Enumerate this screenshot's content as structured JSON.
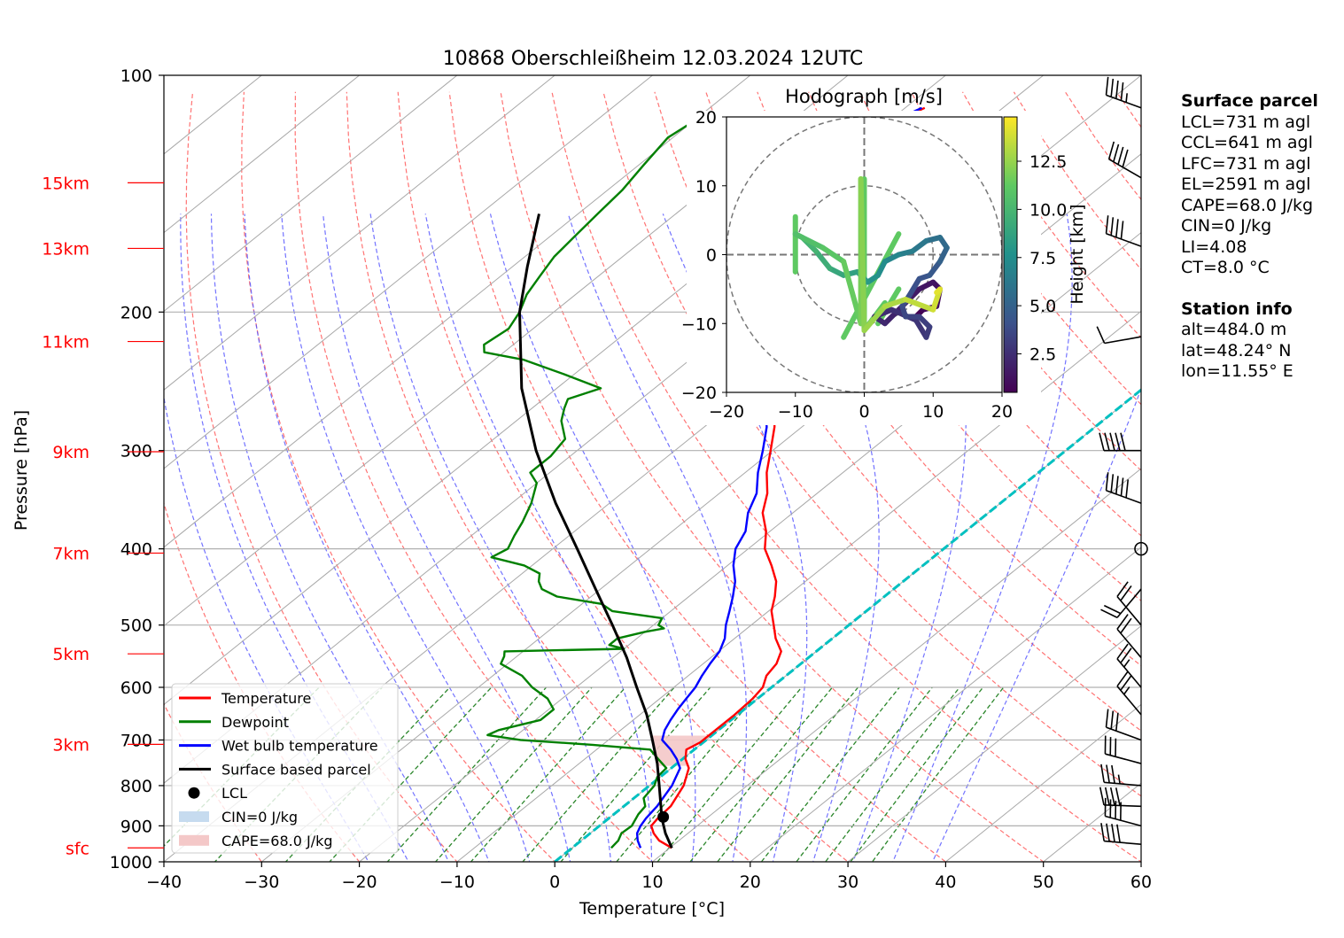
{
  "title": "10868 Oberschleißheim 12.03.2024 12UTC",
  "chart_data": {
    "type": "line",
    "title": "10868 Oberschleißheim 12.03.2024 12UTC",
    "xlabel": "Temperature [°C]",
    "ylabel": "Pressure [hPa]",
    "xlim": [
      -40,
      60
    ],
    "ylim": [
      1000,
      100
    ],
    "y_scale": "log",
    "skew": "skew-T",
    "grid": true,
    "x_ticks": [
      "−40",
      "−30",
      "−20",
      "−10",
      "0",
      "10",
      "20",
      "30",
      "40",
      "50",
      "60"
    ],
    "y_ticks": [
      "100",
      "200",
      "300",
      "400",
      "500",
      "600",
      "700",
      "800",
      "900",
      "1000"
    ],
    "height_ticks": [
      {
        "label": "15km",
        "p": 137
      },
      {
        "label": "13km",
        "p": 166
      },
      {
        "label": "11km",
        "p": 218
      },
      {
        "label": "9km",
        "p": 301
      },
      {
        "label": "7km",
        "p": 405
      },
      {
        "label": "5km",
        "p": 544
      },
      {
        "label": "3km",
        "p": 709
      },
      {
        "label": "sfc",
        "p": 960
      }
    ],
    "legend_position": "lower-left",
    "legend": [
      "Temperature",
      "Dewpoint",
      "Wet bulb temperature",
      "Surface based parcel",
      "LCL",
      "CIN=0 J/kg",
      "CAPE=68.0 J/kg"
    ],
    "series": [
      {
        "name": "Temperature",
        "color": "#ff0000",
        "points": [
          [
            960,
            10.2
          ],
          [
            940,
            8.0
          ],
          [
            920,
            6.5
          ],
          [
            900,
            5.3
          ],
          [
            880,
            5.0
          ],
          [
            850,
            4.8
          ],
          [
            800,
            3.5
          ],
          [
            760,
            1.8
          ],
          [
            740,
            0.3
          ],
          [
            720,
            -0.8
          ],
          [
            705,
            -0.3
          ],
          [
            680,
            -0.3
          ],
          [
            650,
            -0.3
          ],
          [
            620,
            -0.5
          ],
          [
            600,
            -0.9
          ],
          [
            580,
            -2.0
          ],
          [
            560,
            -2.5
          ],
          [
            540,
            -3.6
          ],
          [
            520,
            -5.8
          ],
          [
            500,
            -7.7
          ],
          [
            480,
            -9.7
          ],
          [
            460,
            -11.2
          ],
          [
            440,
            -13.0
          ],
          [
            420,
            -15.5
          ],
          [
            400,
            -18.3
          ],
          [
            380,
            -20.4
          ],
          [
            360,
            -23.1
          ],
          [
            340,
            -25.1
          ],
          [
            320,
            -27.8
          ],
          [
            300,
            -30.2
          ],
          [
            280,
            -32.8
          ],
          [
            260,
            -36.0
          ],
          [
            250,
            -38.5
          ],
          [
            240,
            -41.5
          ],
          [
            230,
            -43.0
          ],
          [
            220,
            -45.0
          ],
          [
            210,
            -46.8
          ],
          [
            200,
            -49.0
          ],
          [
            190,
            -51.0
          ],
          [
            180,
            -52.0
          ],
          [
            170,
            -53.8
          ],
          [
            160,
            -55.3
          ],
          [
            150,
            -57.0
          ],
          [
            140,
            -57.4
          ],
          [
            135,
            -57.6
          ],
          [
            130,
            -58.3
          ],
          [
            125,
            -59.2
          ],
          [
            120,
            -60.0
          ],
          [
            115,
            -59.5
          ],
          [
            110,
            -58.0
          ]
        ]
      },
      {
        "name": "Dewpoint",
        "color": "#008000",
        "points": [
          [
            960,
            4.0
          ],
          [
            940,
            3.8
          ],
          [
            920,
            3.2
          ],
          [
            900,
            3.3
          ],
          [
            870,
            2.5
          ],
          [
            850,
            2.2
          ],
          [
            830,
            1.0
          ],
          [
            800,
            0.5
          ],
          [
            780,
            -0.3
          ],
          [
            760,
            -0.5
          ],
          [
            740,
            -2.5
          ],
          [
            720,
            -4.5
          ],
          [
            710,
            -11.0
          ],
          [
            700,
            -19.0
          ],
          [
            690,
            -23.0
          ],
          [
            680,
            -22.5
          ],
          [
            660,
            -19.5
          ],
          [
            640,
            -19.5
          ],
          [
            620,
            -21.5
          ],
          [
            600,
            -24.5
          ],
          [
            580,
            -27.0
          ],
          [
            560,
            -30.7
          ],
          [
            548,
            -31.3
          ],
          [
            540,
            -31.9
          ],
          [
            536,
            -20.0
          ],
          [
            530,
            -22.0
          ],
          [
            520,
            -22.0
          ],
          [
            510,
            -20.0
          ],
          [
            505,
            -18.5
          ],
          [
            500,
            -19.5
          ],
          [
            490,
            -20.0
          ],
          [
            480,
            -26.0
          ],
          [
            470,
            -28.0
          ],
          [
            460,
            -33.5
          ],
          [
            450,
            -36.0
          ],
          [
            440,
            -37.3
          ],
          [
            430,
            -38.2
          ],
          [
            420,
            -40.8
          ],
          [
            410,
            -45.2
          ],
          [
            400,
            -44.6
          ],
          [
            385,
            -45.6
          ],
          [
            370,
            -46.5
          ],
          [
            350,
            -48.0
          ],
          [
            330,
            -50.0
          ],
          [
            320,
            -52.0
          ],
          [
            305,
            -52.0
          ],
          [
            290,
            -52.7
          ],
          [
            275,
            -55.4
          ],
          [
            265,
            -56.7
          ],
          [
            258,
            -57.5
          ],
          [
            250,
            -55.5
          ],
          [
            240,
            -61.0
          ],
          [
            230,
            -67.0
          ],
          [
            225,
            -72.0
          ],
          [
            220,
            -73.0
          ],
          [
            210,
            -72.5
          ],
          [
            200,
            -73.5
          ],
          [
            190,
            -75.0
          ],
          [
            180,
            -76.0
          ],
          [
            170,
            -77.0
          ],
          [
            160,
            -77.5
          ],
          [
            150,
            -78.0
          ],
          [
            140,
            -78.5
          ],
          [
            130,
            -79.5
          ],
          [
            120,
            -80.5
          ],
          [
            115,
            -80.0
          ]
        ]
      },
      {
        "name": "Wet bulb temperature",
        "color": "#0000ff",
        "points": [
          [
            960,
            7.0
          ],
          [
            940,
            5.8
          ],
          [
            920,
            4.8
          ],
          [
            900,
            4.2
          ],
          [
            880,
            3.8
          ],
          [
            850,
            3.4
          ],
          [
            800,
            2.3
          ],
          [
            760,
            0.9
          ],
          [
            740,
            -0.6
          ],
          [
            720,
            -2.4
          ],
          [
            700,
            -4.5
          ],
          [
            680,
            -5.5
          ],
          [
            660,
            -6.2
          ],
          [
            640,
            -6.8
          ],
          [
            620,
            -7.3
          ],
          [
            600,
            -7.8
          ],
          [
            580,
            -8.6
          ],
          [
            560,
            -9.3
          ],
          [
            540,
            -9.9
          ],
          [
            520,
            -11.0
          ],
          [
            500,
            -12.6
          ],
          [
            480,
            -14.0
          ],
          [
            460,
            -15.5
          ],
          [
            440,
            -17.2
          ],
          [
            420,
            -19.4
          ],
          [
            400,
            -21.3
          ],
          [
            380,
            -22.5
          ],
          [
            360,
            -24.6
          ],
          [
            340,
            -26.2
          ],
          [
            320,
            -28.7
          ],
          [
            300,
            -31.0
          ],
          [
            280,
            -33.6
          ],
          [
            260,
            -37.0
          ],
          [
            250,
            -39.0
          ],
          [
            240,
            -42.0
          ],
          [
            230,
            -44.0
          ],
          [
            220,
            -45.4
          ],
          [
            210,
            -47.2
          ],
          [
            200,
            -49.2
          ],
          [
            190,
            -51.1
          ],
          [
            180,
            -52.2
          ],
          [
            170,
            -54.0
          ],
          [
            160,
            -55.5
          ],
          [
            150,
            -57.2
          ],
          [
            140,
            -57.7
          ],
          [
            130,
            -58.6
          ],
          [
            120,
            -60.3
          ],
          [
            115,
            -59.8
          ],
          [
            110,
            -58.3
          ]
        ]
      },
      {
        "name": "Surface based parcel",
        "color": "#000000",
        "points": [
          [
            960,
            10.2
          ],
          [
            920,
            7.7
          ],
          [
            880,
            5.4
          ],
          [
            850,
            3.8
          ],
          [
            800,
            1.0
          ],
          [
            750,
            -2.0
          ],
          [
            700,
            -5.5
          ],
          [
            650,
            -9.3
          ],
          [
            600,
            -13.8
          ],
          [
            550,
            -18.6
          ],
          [
            500,
            -24.2
          ],
          [
            450,
            -30.5
          ],
          [
            400,
            -37.5
          ],
          [
            350,
            -45.5
          ],
          [
            300,
            -54.2
          ],
          [
            250,
            -63.6
          ],
          [
            200,
            -73.5
          ],
          [
            175,
            -78.5
          ],
          [
            150,
            -84.0
          ]
        ]
      }
    ],
    "lcl": {
      "label": "LCL",
      "p": 877,
      "t": 5.4
    },
    "cape_region": {
      "label": "CAPE=68.0 J/kg",
      "p_range": [
        755,
        690
      ]
    },
    "cin_region": {
      "label": "CIN=0 J/kg"
    },
    "freezing_line": {
      "color": "#00c0c0",
      "style": "dashed",
      "t": 0
    },
    "wind_barbs": {
      "position": "right",
      "items": [
        {
          "p": 110,
          "speed_kt": 45,
          "dir_deg": 290
        },
        {
          "p": 135,
          "speed_kt": 40,
          "dir_deg": 300
        },
        {
          "p": 165,
          "speed_kt": 40,
          "dir_deg": 290
        },
        {
          "p": 215,
          "speed_kt": 10,
          "dir_deg": 260
        },
        {
          "p": 300,
          "speed_kt": 50,
          "dir_deg": 270
        },
        {
          "p": 350,
          "speed_kt": 50,
          "dir_deg": 290
        },
        {
          "p": 400,
          "speed_kt": 0,
          "dir_deg": 0
        },
        {
          "p": 450,
          "speed_kt": 20,
          "dir_deg": 220
        },
        {
          "p": 500,
          "speed_kt": 20,
          "dir_deg": 320
        },
        {
          "p": 550,
          "speed_kt": 20,
          "dir_deg": 320
        },
        {
          "p": 600,
          "speed_kt": 25,
          "dir_deg": 320
        },
        {
          "p": 650,
          "speed_kt": 25,
          "dir_deg": 320
        },
        {
          "p": 700,
          "speed_kt": 30,
          "dir_deg": 290
        },
        {
          "p": 750,
          "speed_kt": 30,
          "dir_deg": 285
        },
        {
          "p": 800,
          "speed_kt": 35,
          "dir_deg": 275
        },
        {
          "p": 850,
          "speed_kt": 40,
          "dir_deg": 272
        },
        {
          "p": 900,
          "speed_kt": 40,
          "dir_deg": 285
        },
        {
          "p": 950,
          "speed_kt": 40,
          "dir_deg": 275
        }
      ]
    },
    "hodograph": {
      "title": "Hodograph [m/s]",
      "xlim": [
        -20,
        20
      ],
      "ylim": [
        -20,
        20
      ],
      "ticks": [
        "−20",
        "−10",
        "0",
        "10",
        "20"
      ],
      "colorbar_label": "Height [km]",
      "colorbar_ticks": [
        "2.5",
        "5.0",
        "7.5",
        "10.0",
        "12.5"
      ],
      "colorbar_range": [
        0.5,
        14.8
      ],
      "points": [
        [
          7.5,
          -9.0,
          0.5
        ],
        [
          8.5,
          -8.0,
          0.8
        ],
        [
          10.5,
          -7.5,
          1.0
        ],
        [
          11.0,
          -5.0,
          1.2
        ],
        [
          10.0,
          -4.0,
          1.4
        ],
        [
          8.0,
          -5.0,
          1.6
        ],
        [
          6.0,
          -7.0,
          1.8
        ],
        [
          4.5,
          -8.5,
          2.0
        ],
        [
          3.0,
          -10.0,
          2.2
        ],
        [
          1.5,
          -9.0,
          2.4
        ],
        [
          4.0,
          -8.0,
          2.6
        ],
        [
          7.5,
          -9.5,
          2.8
        ],
        [
          9.0,
          -12.0,
          3.0
        ],
        [
          9.5,
          -10.5,
          3.2
        ],
        [
          8.0,
          -9.0,
          3.4
        ],
        [
          6.0,
          -9.0,
          3.6
        ],
        [
          5.5,
          -7.5,
          3.8
        ],
        [
          6.5,
          -6.0,
          4.0
        ],
        [
          8.0,
          -3.5,
          4.2
        ],
        [
          9.5,
          -3.0,
          4.5
        ],
        [
          11.0,
          -1.0,
          5.0
        ],
        [
          12.0,
          1.0,
          5.4
        ],
        [
          11.0,
          2.5,
          5.8
        ],
        [
          9.0,
          2.0,
          6.2
        ],
        [
          7.0,
          0.5,
          6.6
        ],
        [
          5.0,
          0.0,
          7.0
        ],
        [
          3.0,
          -1.0,
          7.4
        ],
        [
          2.0,
          -3.0,
          7.8
        ],
        [
          0.5,
          -4.0,
          8.2
        ],
        [
          -1.0,
          -2.5,
          8.6
        ],
        [
          -3.0,
          -3.0,
          9.0
        ],
        [
          -5.0,
          -2.0,
          9.4
        ],
        [
          -7.0,
          0.5,
          9.8
        ],
        [
          -9.0,
          2.5,
          10.2
        ],
        [
          -10.0,
          3.0,
          10.6
        ],
        [
          -6.0,
          1.0,
          11.0
        ],
        [
          -3.0,
          -1.0,
          11.4
        ],
        [
          -0.5,
          -10.0,
          11.8
        ],
        [
          -0.5,
          11.0,
          12.2
        ],
        [
          0.0,
          -11.0,
          12.6
        ],
        [
          3.0,
          -7.5,
          13.0
        ],
        [
          6.0,
          -6.5,
          13.4
        ],
        [
          10.0,
          -8.0,
          13.8
        ],
        [
          11.0,
          -5.0,
          14.2
        ],
        [
          10.5,
          -5.5,
          14.6
        ]
      ],
      "strokes": [
        [
          [
            -10,
            -2.5
          ],
          [
            -10,
            5.5
          ]
        ],
        [
          [
            0,
            -11
          ],
          [
            0,
            11
          ]
        ],
        [
          [
            0,
            -11
          ],
          [
            3,
            -7
          ]
        ],
        [
          [
            -3,
            -12
          ],
          [
            5,
            3
          ]
        ],
        [
          [
            2,
            -10
          ],
          [
            5,
            -5
          ]
        ]
      ]
    },
    "isotherm_dashed_colors": {
      "dry_adiabat": "#ff0000",
      "moist_adiabat": "#0000ff",
      "mixing_ratio": "#008000"
    }
  },
  "surface_parcel": {
    "heading": "Surface parcel",
    "lines": [
      "LCL=731 m agl",
      "CCL=641 m agl",
      "LFC=731 m agl",
      "EL=2591 m agl",
      "CAPE=68.0 J/kg",
      "CIN=0 J/kg",
      "LI=4.08",
      "CT=8.0 °C"
    ]
  },
  "station_info": {
    "heading": "Station info",
    "lines": [
      "alt=484.0 m",
      "lat=48.24° N",
      "lon=11.55° E"
    ]
  }
}
